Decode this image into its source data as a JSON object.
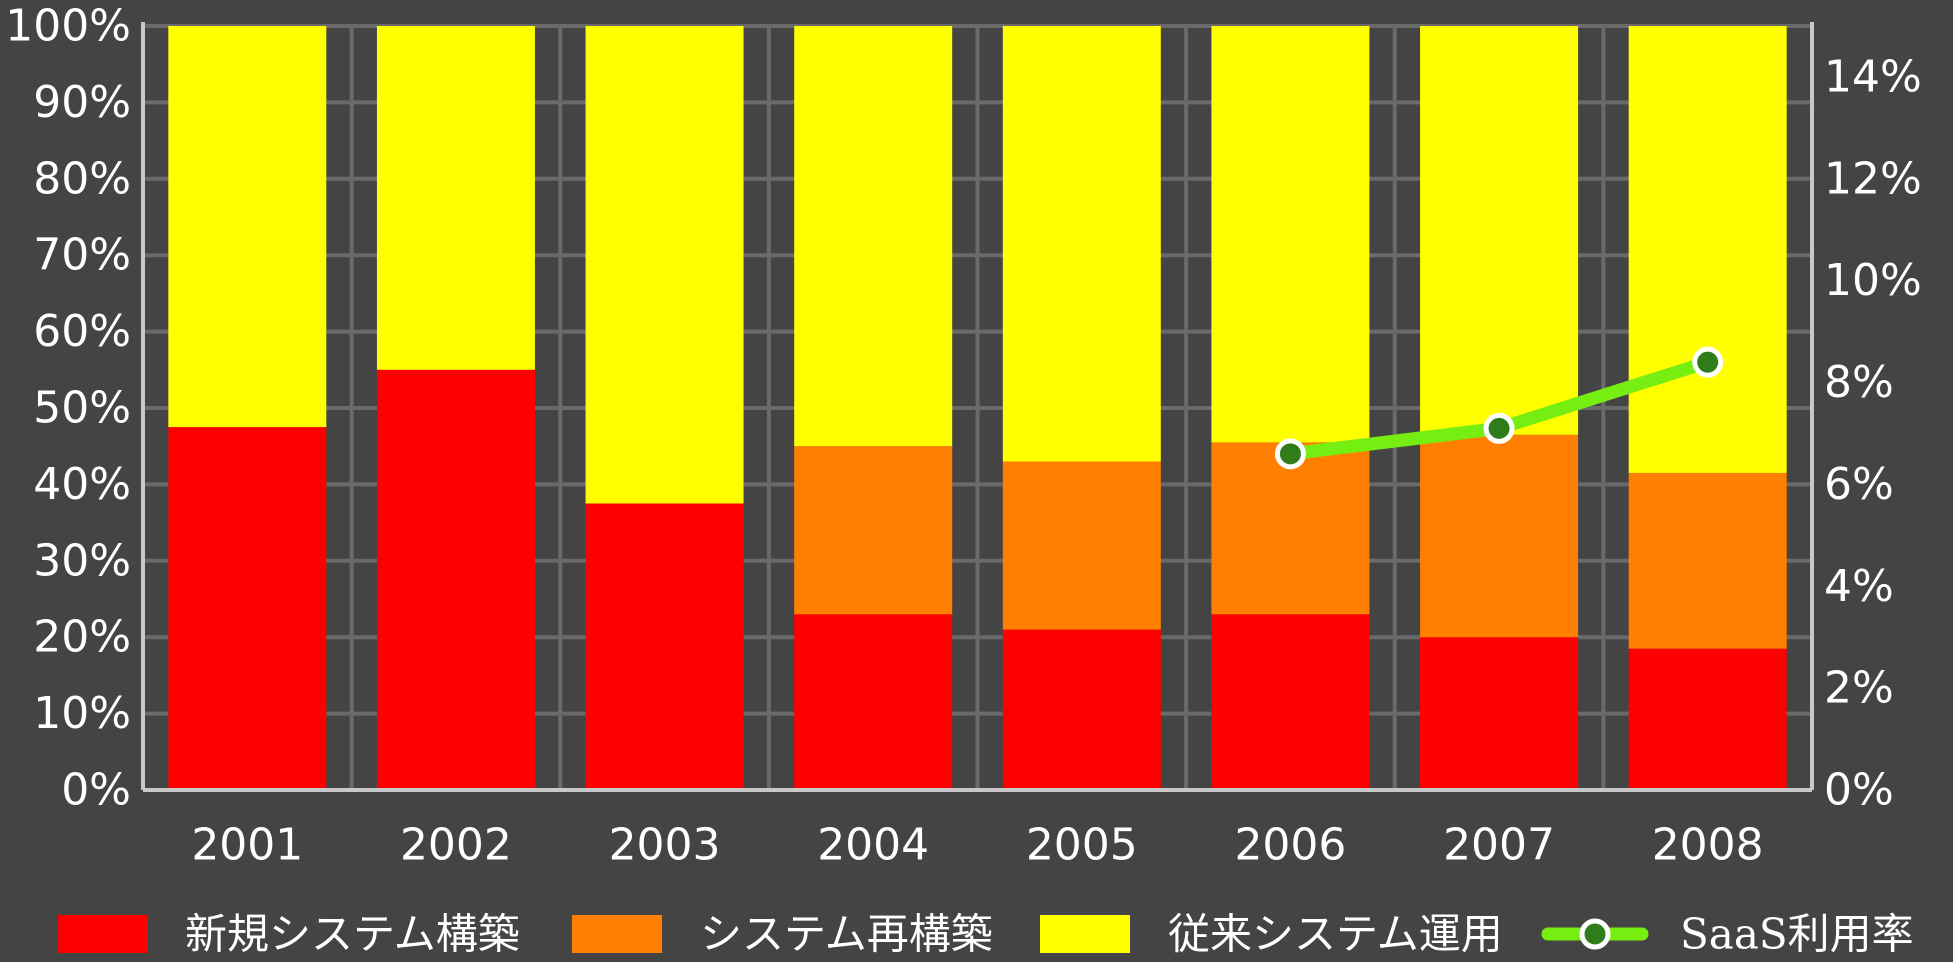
{
  "chart_data": {
    "type": "bar",
    "stacked": true,
    "categories": [
      "2001",
      "2002",
      "2003",
      "2004",
      "2005",
      "2006",
      "2007",
      "2008"
    ],
    "series": [
      {
        "name": "新規システム構築",
        "type": "bar",
        "color": "#ff0000",
        "values": [
          47.5,
          55,
          37.5,
          23,
          21,
          23,
          20,
          18.5
        ]
      },
      {
        "name": "システム再構築",
        "type": "bar",
        "color": "#ff7f00",
        "values": [
          0,
          0,
          0,
          22,
          22,
          22.5,
          26.5,
          23
        ]
      },
      {
        "name": "従来システム運用",
        "type": "bar",
        "color": "#ffff00",
        "values": [
          52.5,
          45,
          62.5,
          55,
          57,
          54.5,
          53.5,
          58.5
        ]
      },
      {
        "name": "SaaS利用率",
        "type": "line",
        "axis": "right",
        "color": "#77ee11",
        "marker_fill": "#2e7d1a",
        "values": [
          null,
          null,
          null,
          null,
          null,
          6.6,
          7.1,
          8.4
        ]
      }
    ],
    "ylim": [
      0,
      100
    ],
    "y_ticks": [
      "0%",
      "10%",
      "20%",
      "30%",
      "40%",
      "50%",
      "60%",
      "70%",
      "80%",
      "90%",
      "100%"
    ],
    "y2lim": [
      0,
      15
    ],
    "y2_ticks": [
      "0%",
      "2%",
      "4%",
      "6%",
      "8%",
      "10%",
      "12%",
      "14%"
    ],
    "y2_tick_values": [
      0,
      2,
      4,
      6,
      8,
      10,
      12,
      14
    ],
    "grid": true,
    "legend_position": "bottom",
    "colors": {
      "background": "#444444",
      "grid": "#6a6a6a",
      "axis": "#c8c8c8",
      "text": "#ffffff"
    }
  }
}
